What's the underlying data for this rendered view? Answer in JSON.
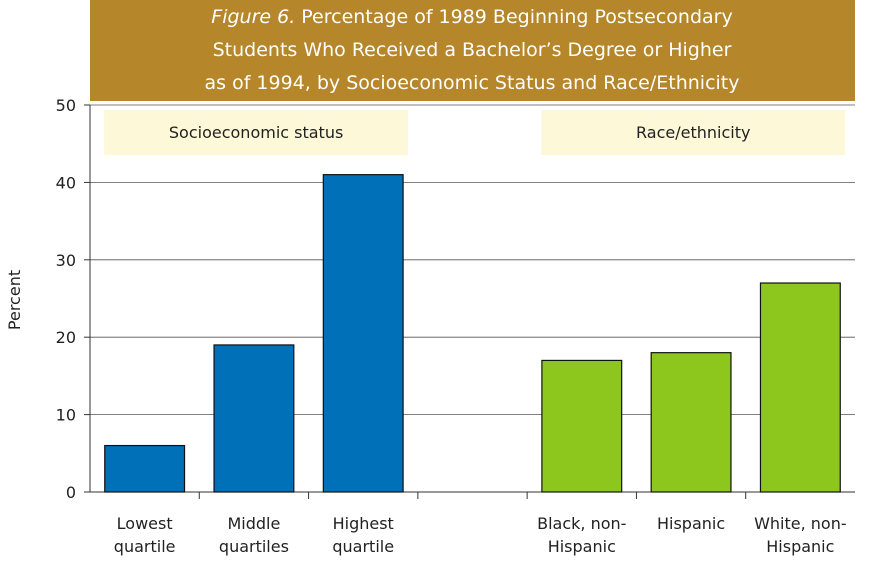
{
  "chart_data": {
    "type": "bar",
    "figure_label": "Figure 6.",
    "title": [
      "Percentage of 1989 Beginning Postsecondary",
      "Students Who Received a Bachelor’s Degree or Higher",
      "as of 1994, by Socioeconomic Status and Race/Ethnicity"
    ],
    "y_label": "Percent",
    "categories": [
      [
        "Lowest",
        "quartile"
      ],
      [
        "Middle",
        "quartiles"
      ],
      [
        "Highest",
        "quartile"
      ],
      null,
      [
        "Black, non-",
        "Hispanic"
      ],
      [
        "Hispanic"
      ],
      [
        "White, non-",
        "Hispanic"
      ]
    ],
    "series": [
      {
        "name": "Socioeconomic status",
        "color": "#0070b8",
        "values": [
          6,
          19,
          41,
          null,
          null,
          null,
          null
        ]
      },
      {
        "name": "Race/ethnicity",
        "color": "#8dc71e",
        "values": [
          null,
          null,
          null,
          null,
          17,
          18,
          27
        ]
      }
    ],
    "ylim": [
      0,
      50
    ],
    "yticks": [
      0,
      10,
      20,
      30,
      40,
      50
    ],
    "grid": true
  }
}
